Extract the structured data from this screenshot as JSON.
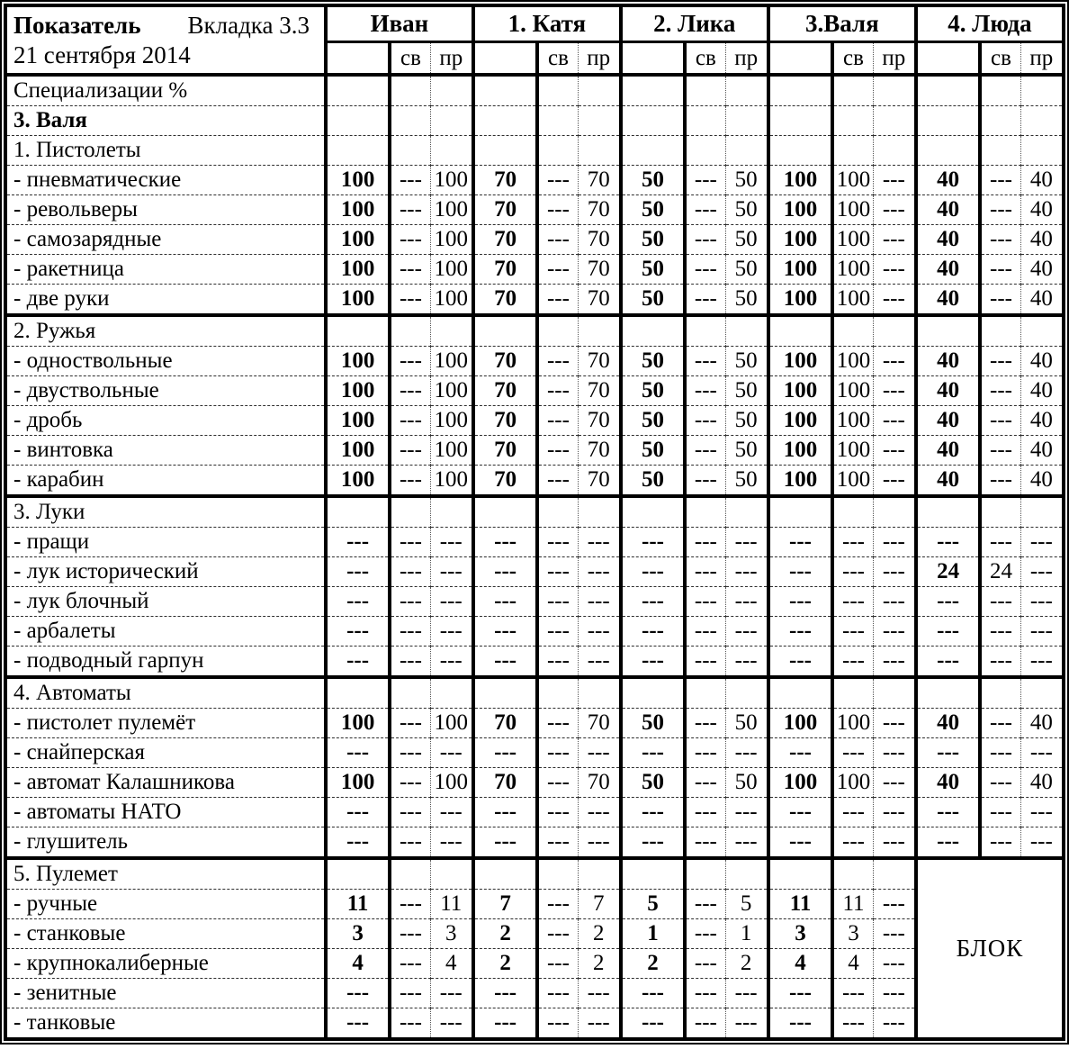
{
  "page": {
    "title": "Показатель",
    "tab": "Вкладка 3.3",
    "date": "21 сентября 2014"
  },
  "columns": {
    "groups": [
      "Иван",
      "1. Катя",
      "2. Лика",
      "3.Валя",
      "4. Люда"
    ],
    "subheaders": [
      "",
      "св",
      "пр"
    ]
  },
  "meta_rows": [
    {
      "label": "Специализации %",
      "bold": false
    },
    {
      "label": "3. Валя",
      "bold": true
    }
  ],
  "sections": [
    {
      "title": "1. Пистолеты",
      "thick_top": false,
      "rows": [
        {
          "label": "- пневматические",
          "values": [
            "100",
            "---",
            "100",
            "70",
            "---",
            "70",
            "50",
            "---",
            "50",
            "100",
            "100",
            "---",
            "40",
            "---",
            "40"
          ]
        },
        {
          "label": "- револьверы",
          "values": [
            "100",
            "---",
            "100",
            "70",
            "---",
            "70",
            "50",
            "---",
            "50",
            "100",
            "100",
            "---",
            "40",
            "---",
            "40"
          ]
        },
        {
          "label": "- самозарядные",
          "values": [
            "100",
            "---",
            "100",
            "70",
            "---",
            "70",
            "50",
            "---",
            "50",
            "100",
            "100",
            "---",
            "40",
            "---",
            "40"
          ]
        },
        {
          "label": "- ракетница",
          "values": [
            "100",
            "---",
            "100",
            "70",
            "---",
            "70",
            "50",
            "---",
            "50",
            "100",
            "100",
            "---",
            "40",
            "---",
            "40"
          ]
        },
        {
          "label": "- две руки",
          "values": [
            "100",
            "---",
            "100",
            "70",
            "---",
            "70",
            "50",
            "---",
            "50",
            "100",
            "100",
            "---",
            "40",
            "---",
            "40"
          ]
        }
      ]
    },
    {
      "title": "2. Ружья",
      "thick_top": true,
      "rows": [
        {
          "label": "- одноствольные",
          "values": [
            "100",
            "---",
            "100",
            "70",
            "---",
            "70",
            "50",
            "---",
            "50",
            "100",
            "100",
            "---",
            "40",
            "---",
            "40"
          ]
        },
        {
          "label": "- двуствольные",
          "values": [
            "100",
            "---",
            "100",
            "70",
            "---",
            "70",
            "50",
            "---",
            "50",
            "100",
            "100",
            "---",
            "40",
            "---",
            "40"
          ]
        },
        {
          "label": "- дробь",
          "values": [
            "100",
            "---",
            "100",
            "70",
            "---",
            "70",
            "50",
            "---",
            "50",
            "100",
            "100",
            "---",
            "40",
            "---",
            "40"
          ]
        },
        {
          "label": "- винтовка",
          "values": [
            "100",
            "---",
            "100",
            "70",
            "---",
            "70",
            "50",
            "---",
            "50",
            "100",
            "100",
            "---",
            "40",
            "---",
            "40"
          ]
        },
        {
          "label": "- карабин",
          "values": [
            "100",
            "---",
            "100",
            "70",
            "---",
            "70",
            "50",
            "---",
            "50",
            "100",
            "100",
            "---",
            "40",
            "---",
            "40"
          ]
        }
      ]
    },
    {
      "title": "3. Луки",
      "thick_top": true,
      "rows": [
        {
          "label": "- пращи",
          "values": [
            "---",
            "---",
            "---",
            "---",
            "---",
            "---",
            "---",
            "---",
            "---",
            "---",
            "---",
            "---",
            "---",
            "---",
            "---"
          ]
        },
        {
          "label": "- лук исторический",
          "values": [
            "---",
            "---",
            "---",
            "---",
            "---",
            "---",
            "---",
            "---",
            "---",
            "---",
            "---",
            "---",
            "24",
            "24",
            "---"
          ]
        },
        {
          "label": "- лук блочный",
          "values": [
            "---",
            "---",
            "---",
            "---",
            "---",
            "---",
            "---",
            "---",
            "---",
            "---",
            "---",
            "---",
            "---",
            "---",
            "---"
          ]
        },
        {
          "label": "- арбалеты",
          "values": [
            "---",
            "---",
            "---",
            "---",
            "---",
            "---",
            "---",
            "---",
            "---",
            "---",
            "---",
            "---",
            "---",
            "---",
            "---"
          ]
        },
        {
          "label": "- подводный гарпун",
          "values": [
            "---",
            "---",
            "---",
            "---",
            "---",
            "---",
            "---",
            "---",
            "---",
            "---",
            "---",
            "---",
            "---",
            "---",
            "---"
          ]
        }
      ]
    },
    {
      "title": "4. Автоматы",
      "thick_top": true,
      "rows": [
        {
          "label": "- пистолет пулемёт",
          "values": [
            "100",
            "---",
            "100",
            "70",
            "---",
            "70",
            "50",
            "---",
            "50",
            "100",
            "100",
            "---",
            "40",
            "---",
            "40"
          ]
        },
        {
          "label": "- снайперская",
          "values": [
            "---",
            "---",
            "---",
            "---",
            "---",
            "---",
            "---",
            "---",
            "---",
            "---",
            "---",
            "---",
            "---",
            "---",
            "---"
          ]
        },
        {
          "label": "- автомат Калашникова",
          "values": [
            "100",
            "---",
            "100",
            "70",
            "---",
            "70",
            "50",
            "---",
            "50",
            "100",
            "100",
            "---",
            "40",
            "---",
            "40"
          ]
        },
        {
          "label": "- автоматы НАТО",
          "values": [
            "---",
            "---",
            "---",
            "---",
            "---",
            "---",
            "---",
            "---",
            "---",
            "---",
            "---",
            "---",
            "---",
            "---",
            "---"
          ]
        },
        {
          "label": "- глушитель",
          "values": [
            "---",
            "---",
            "---",
            "---",
            "---",
            "---",
            "---",
            "---",
            "---",
            "---",
            "---",
            "---",
            "---",
            "---",
            "---"
          ]
        }
      ]
    },
    {
      "title": "5. Пулемет",
      "thick_top": true,
      "has_block": true,
      "rows": [
        {
          "label": "- ручные",
          "values": [
            "11",
            "---",
            "11",
            "7",
            "---",
            "7",
            "5",
            "---",
            "5",
            "11",
            "11",
            "---"
          ]
        },
        {
          "label": "- станковые",
          "values": [
            "3",
            "---",
            "3",
            "2",
            "---",
            "2",
            "1",
            "---",
            "1",
            "3",
            "3",
            "---"
          ]
        },
        {
          "label": "- крупнокалиберные",
          "values": [
            "4",
            "---",
            "4",
            "2",
            "---",
            "2",
            "2",
            "---",
            "2",
            "4",
            "4",
            "---"
          ]
        },
        {
          "label": "- зенитные",
          "values": [
            "---",
            "---",
            "---",
            "---",
            "---",
            "---",
            "---",
            "---",
            "---",
            "---",
            "---",
            "---"
          ]
        },
        {
          "label": "- танковые",
          "values": [
            "---",
            "---",
            "---",
            "---",
            "---",
            "---",
            "---",
            "---",
            "---",
            "---",
            "---",
            "---"
          ]
        }
      ]
    }
  ],
  "block": {
    "label": "БЛОК"
  }
}
